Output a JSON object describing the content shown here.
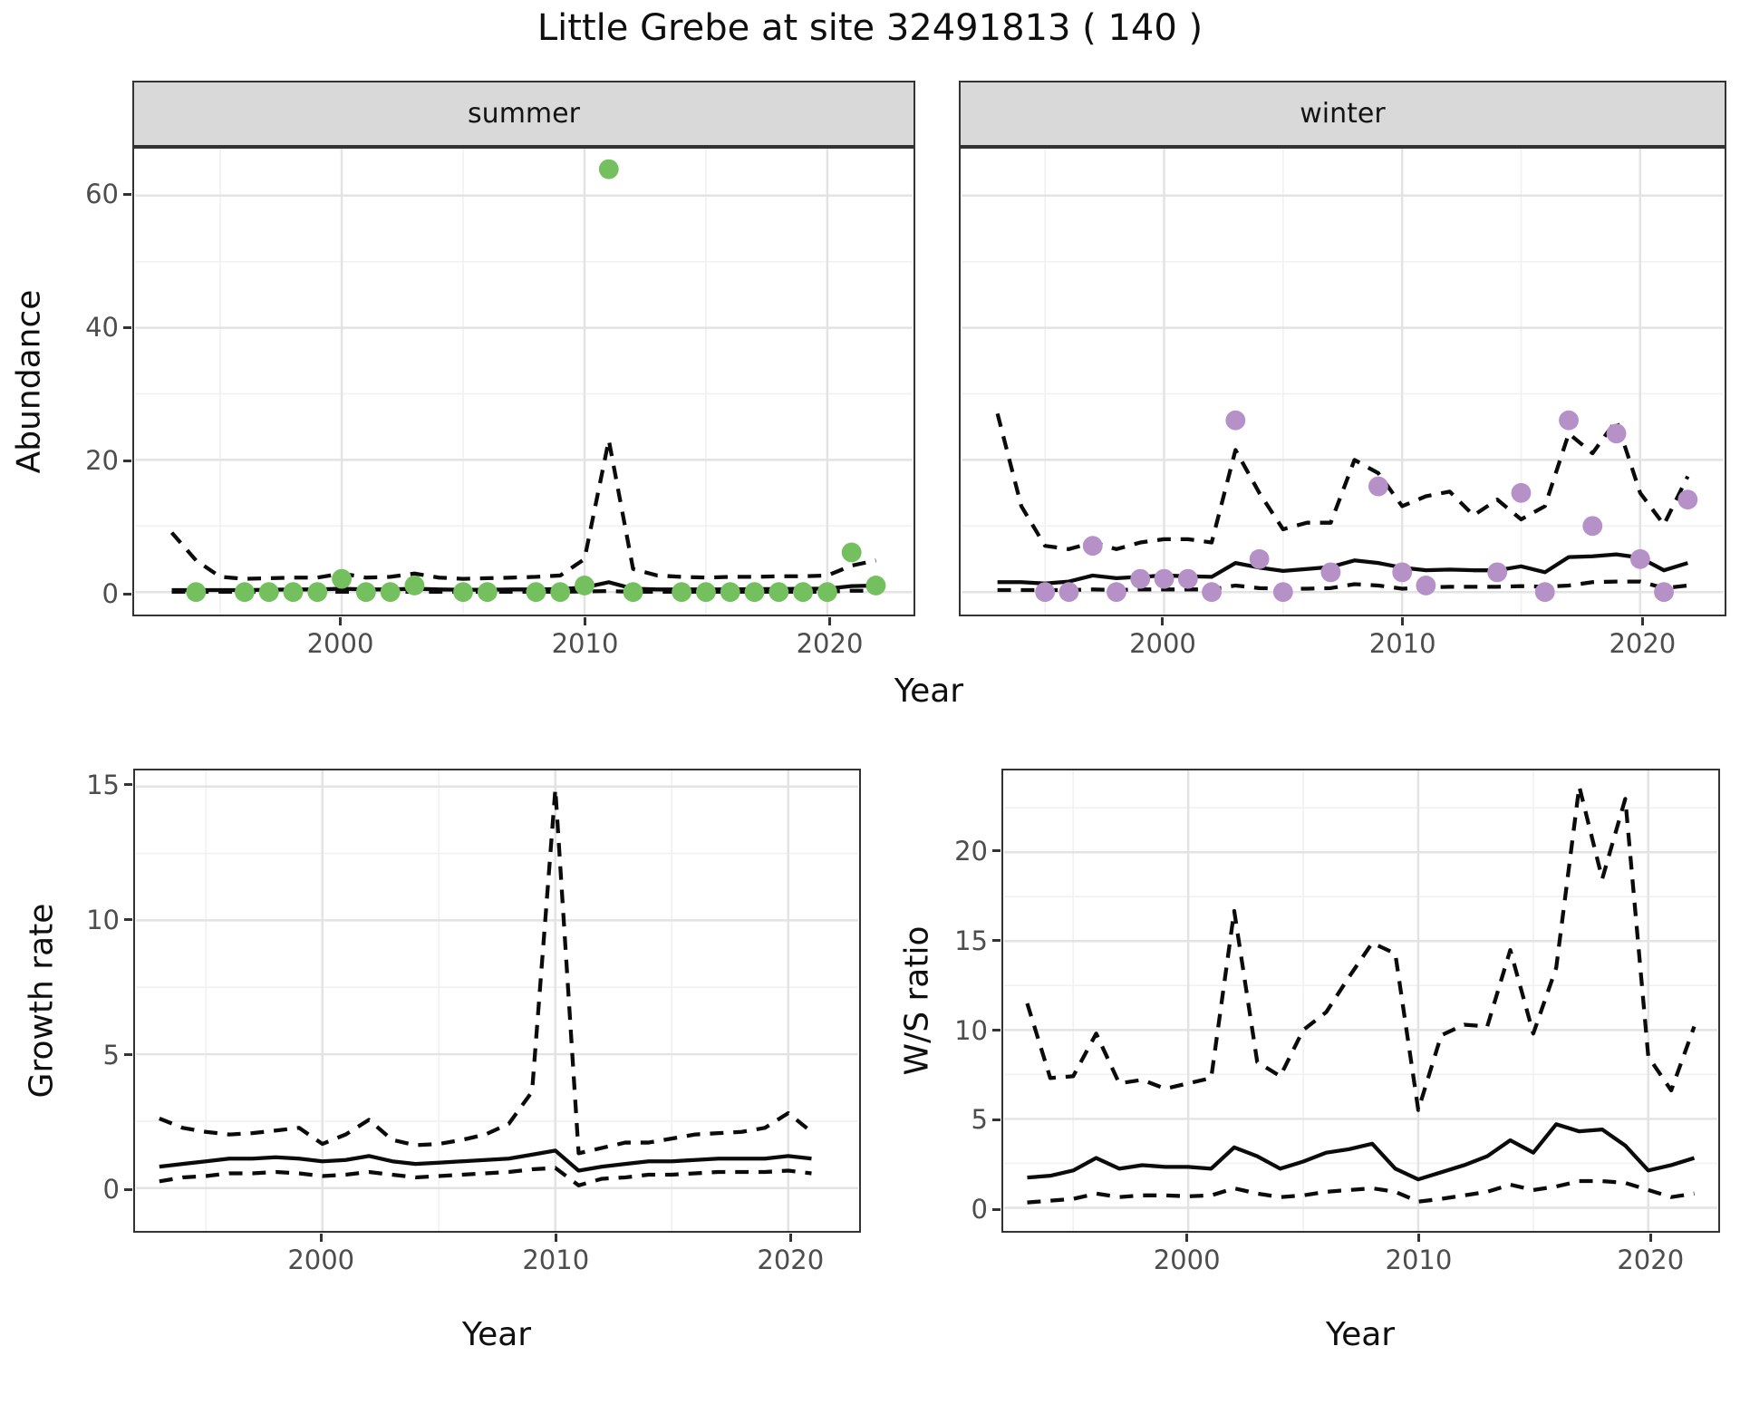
{
  "title": "Little Grebe at site 32491813 ( 140 )",
  "facets": {
    "summer_label": "summer",
    "winter_label": "winter"
  },
  "axis_labels": {
    "abundance": "Abundance",
    "year_top": "Year",
    "growth": "Growth rate",
    "year_growth": "Year",
    "ws": "W/S ratio",
    "year_ws": "Year"
  },
  "colors": {
    "summer_point": "#74c05e",
    "winter_point": "#b691c8",
    "line": "#0b0b0b",
    "strip_bg": "#d9d9d9",
    "panel_border": "#333333",
    "grid_major": "#e3e3e3",
    "grid_minor": "#f1f1f1",
    "tick_text": "#4d4d4d"
  },
  "chart_data": [
    {
      "id": "abundance-summer",
      "type": "scatter",
      "facet": "summer",
      "xlabel": "Year",
      "ylabel": "Abundance",
      "xlim": [
        1991.5,
        2023.5
      ],
      "ylim": [
        -3.4,
        67.1
      ],
      "xticks": [
        2000,
        2010,
        2020
      ],
      "xminor": [
        1995,
        2005,
        2015
      ],
      "yticks": [
        0,
        20,
        40,
        60
      ],
      "yminor": [
        10,
        30,
        50
      ],
      "show_y_labels": true,
      "years": [
        1993,
        1994,
        1995,
        1996,
        1997,
        1998,
        1999,
        2000,
        2001,
        2002,
        2003,
        2004,
        2005,
        2006,
        2007,
        2008,
        2009,
        2010,
        2011,
        2012,
        2013,
        2014,
        2015,
        2016,
        2017,
        2018,
        2019,
        2020,
        2021,
        2022
      ],
      "series": [
        {
          "name": "upper-ci",
          "style": "dashed",
          "values": [
            9.0,
            4.8,
            2.3,
            2.0,
            2.1,
            2.2,
            2.2,
            2.8,
            2.2,
            2.3,
            2.8,
            2.2,
            2.0,
            2.1,
            2.2,
            2.3,
            2.5,
            5.0,
            23.0,
            3.5,
            2.5,
            2.3,
            2.2,
            2.3,
            2.3,
            2.4,
            2.4,
            2.5,
            4.0,
            4.8
          ]
        },
        {
          "name": "median",
          "style": "solid",
          "values": [
            0.3,
            0.3,
            0.3,
            0.3,
            0.35,
            0.4,
            0.4,
            0.5,
            0.4,
            0.4,
            0.5,
            0.4,
            0.35,
            0.35,
            0.4,
            0.4,
            0.45,
            0.7,
            1.5,
            0.5,
            0.4,
            0.4,
            0.4,
            0.4,
            0.45,
            0.45,
            0.5,
            0.5,
            0.9,
            1.0
          ]
        },
        {
          "name": "lower-ci",
          "style": "dashed",
          "values": [
            0.05,
            0.05,
            0.05,
            0.05,
            0.05,
            0.05,
            0.05,
            0.05,
            0.05,
            0.05,
            0.05,
            0.05,
            0.05,
            0.05,
            0.05,
            0.05,
            0.05,
            0.1,
            0.15,
            0.05,
            0.05,
            0.05,
            0.05,
            0.05,
            0.05,
            0.05,
            0.05,
            0.05,
            0.2,
            0.2
          ]
        }
      ],
      "points": {
        "color": "#74c05e",
        "x": [
          1994,
          1996,
          1997,
          1998,
          1999,
          2000,
          2001,
          2002,
          2003,
          2005,
          2006,
          2008,
          2009,
          2010,
          2011,
          2012,
          2014,
          2015,
          2016,
          2017,
          2018,
          2019,
          2020,
          2021,
          2022
        ],
        "y": [
          0,
          0,
          0,
          0,
          0,
          2,
          0,
          0,
          1,
          0,
          0,
          0,
          0,
          1,
          64,
          0,
          0,
          0,
          0,
          0,
          0,
          0,
          0,
          6,
          1
        ]
      }
    },
    {
      "id": "abundance-winter",
      "type": "scatter",
      "facet": "winter",
      "xlabel": "Year",
      "ylabel": "Abundance",
      "xlim": [
        1991.5,
        2023.5
      ],
      "ylim": [
        -3.4,
        67.1
      ],
      "xticks": [
        2000,
        2010,
        2020
      ],
      "xminor": [
        1995,
        2005,
        2015
      ],
      "yticks": [
        0,
        20,
        40,
        60
      ],
      "yminor": [
        10,
        30,
        50
      ],
      "show_y_labels": false,
      "years": [
        1993,
        1994,
        1995,
        1996,
        1997,
        1998,
        1999,
        2000,
        2001,
        2002,
        2003,
        2004,
        2005,
        2006,
        2007,
        2008,
        2009,
        2010,
        2011,
        2012,
        2013,
        2014,
        2015,
        2016,
        2017,
        2018,
        2019,
        2020,
        2021,
        2022
      ],
      "series": [
        {
          "name": "upper-ci",
          "style": "dashed",
          "values": [
            27,
            13,
            7,
            6.5,
            7.5,
            6.5,
            7.5,
            8,
            8,
            7.5,
            21.5,
            15,
            9.5,
            10.5,
            10.5,
            20,
            18,
            13,
            14.5,
            15.2,
            11.6,
            14,
            11,
            13,
            24,
            21,
            26,
            15,
            10.2,
            17.5
          ]
        },
        {
          "name": "median",
          "style": "solid",
          "values": [
            1.5,
            1.5,
            1.3,
            1.6,
            2.5,
            2.1,
            2.3,
            2.5,
            2.4,
            2.3,
            4.4,
            3.7,
            3.2,
            3.5,
            3.8,
            4.8,
            4.4,
            3.7,
            3.3,
            3.4,
            3.3,
            3.3,
            3.9,
            3.0,
            5.3,
            5.4,
            5.7,
            5.2,
            3.3,
            4.4
          ]
        },
        {
          "name": "lower-ci",
          "style": "dashed",
          "values": [
            0.3,
            0.3,
            0.3,
            0.3,
            0.4,
            0.3,
            0.4,
            0.4,
            0.4,
            0.4,
            1.0,
            0.6,
            0.5,
            0.5,
            0.6,
            1.2,
            1.0,
            0.5,
            0.7,
            0.8,
            0.8,
            0.8,
            0.9,
            0.8,
            1.0,
            1.5,
            1.6,
            1.6,
            0.6,
            1.0
          ]
        }
      ],
      "points": {
        "color": "#b691c8",
        "x": [
          1995,
          1996,
          1997,
          1998,
          1999,
          2000,
          2001,
          2002,
          2003,
          2004,
          2005,
          2007,
          2009,
          2010,
          2011,
          2014,
          2015,
          2016,
          2017,
          2018,
          2019,
          2020,
          2021,
          2022
        ],
        "y": [
          0,
          0,
          7,
          0,
          2,
          2,
          2,
          0,
          26,
          5,
          0,
          3,
          16,
          3,
          1,
          3,
          15,
          0,
          26,
          10,
          24,
          5,
          0,
          14
        ]
      }
    },
    {
      "id": "growth-rate",
      "type": "line",
      "xlabel": "Year",
      "ylabel": "Growth rate",
      "xlim": [
        1992,
        2023
      ],
      "ylim": [
        -1.6,
        15.6
      ],
      "xticks": [
        2000,
        2010,
        2020
      ],
      "xminor": [
        1995,
        2005,
        2015
      ],
      "yticks": [
        0,
        5,
        10,
        15
      ],
      "yminor": [
        2.5,
        7.5,
        12.5
      ],
      "show_y_labels": true,
      "years": [
        1993,
        1994,
        1995,
        1996,
        1997,
        1998,
        1999,
        2000,
        2001,
        2002,
        2003,
        2004,
        2005,
        2006,
        2007,
        2008,
        2009,
        2010,
        2011,
        2012,
        2013,
        2014,
        2015,
        2016,
        2017,
        2018,
        2019,
        2020,
        2021
      ],
      "series": [
        {
          "name": "upper-ci",
          "style": "dashed",
          "values": [
            2.6,
            2.25,
            2.1,
            2.0,
            2.05,
            2.15,
            2.25,
            1.65,
            2.0,
            2.55,
            1.8,
            1.6,
            1.65,
            1.8,
            2.0,
            2.4,
            3.6,
            14.9,
            1.3,
            1.5,
            1.7,
            1.7,
            1.85,
            2.0,
            2.05,
            2.1,
            2.25,
            2.8,
            2.1
          ]
        },
        {
          "name": "median",
          "style": "solid",
          "values": [
            0.8,
            0.9,
            1.0,
            1.1,
            1.1,
            1.15,
            1.1,
            1.0,
            1.05,
            1.2,
            1.0,
            0.9,
            0.95,
            1.0,
            1.05,
            1.1,
            1.25,
            1.4,
            0.65,
            0.8,
            0.9,
            1.0,
            1.0,
            1.05,
            1.1,
            1.1,
            1.1,
            1.2,
            1.1
          ]
        },
        {
          "name": "lower-ci",
          "style": "dashed",
          "values": [
            0.25,
            0.4,
            0.45,
            0.55,
            0.55,
            0.6,
            0.55,
            0.45,
            0.5,
            0.6,
            0.5,
            0.4,
            0.45,
            0.5,
            0.55,
            0.6,
            0.7,
            0.75,
            0.1,
            0.35,
            0.4,
            0.5,
            0.5,
            0.55,
            0.6,
            0.6,
            0.6,
            0.65,
            0.55
          ]
        }
      ]
    },
    {
      "id": "ws-ratio",
      "type": "line",
      "xlabel": "Year",
      "ylabel": "W/S ratio",
      "xlim": [
        1992,
        2023
      ],
      "ylim": [
        -1.3,
        24.6
      ],
      "xticks": [
        2000,
        2010,
        2020
      ],
      "xminor": [
        1995,
        2005,
        2015
      ],
      "yticks": [
        0,
        5,
        10,
        15,
        20
      ],
      "yminor": [
        2.5,
        7.5,
        12.5,
        17.5,
        22.5
      ],
      "show_y_labels": true,
      "years": [
        1993,
        1994,
        1995,
        1996,
        1997,
        1998,
        1999,
        2000,
        2001,
        2002,
        2003,
        2004,
        2005,
        2006,
        2007,
        2008,
        2009,
        2010,
        2011,
        2012,
        2013,
        2014,
        2015,
        2016,
        2017,
        2018,
        2019,
        2020,
        2021,
        2022
      ],
      "series": [
        {
          "name": "upper-ci",
          "style": "dashed",
          "values": [
            11.5,
            7.3,
            7.4,
            9.8,
            7.0,
            7.2,
            6.7,
            7.0,
            7.3,
            16.7,
            8.2,
            7.4,
            10.0,
            11.0,
            13.0,
            14.9,
            14.3,
            5.5,
            9.7,
            10.3,
            10.2,
            14.5,
            9.8,
            13.5,
            23.7,
            18.5,
            23.0,
            8.5,
            6.6,
            10.2
          ]
        },
        {
          "name": "median",
          "style": "solid",
          "values": [
            1.7,
            1.8,
            2.1,
            2.8,
            2.2,
            2.4,
            2.3,
            2.3,
            2.2,
            3.4,
            2.9,
            2.2,
            2.6,
            3.1,
            3.3,
            3.6,
            2.2,
            1.6,
            2.0,
            2.4,
            2.9,
            3.8,
            3.1,
            4.7,
            4.3,
            4.4,
            3.5,
            2.1,
            2.4,
            2.8
          ]
        },
        {
          "name": "lower-ci",
          "style": "dashed",
          "values": [
            0.3,
            0.4,
            0.5,
            0.8,
            0.6,
            0.7,
            0.7,
            0.65,
            0.7,
            1.1,
            0.8,
            0.6,
            0.7,
            0.9,
            1.0,
            1.1,
            0.9,
            0.35,
            0.5,
            0.7,
            0.9,
            1.3,
            1.0,
            1.2,
            1.5,
            1.5,
            1.4,
            1.0,
            0.6,
            0.8
          ]
        }
      ]
    }
  ]
}
